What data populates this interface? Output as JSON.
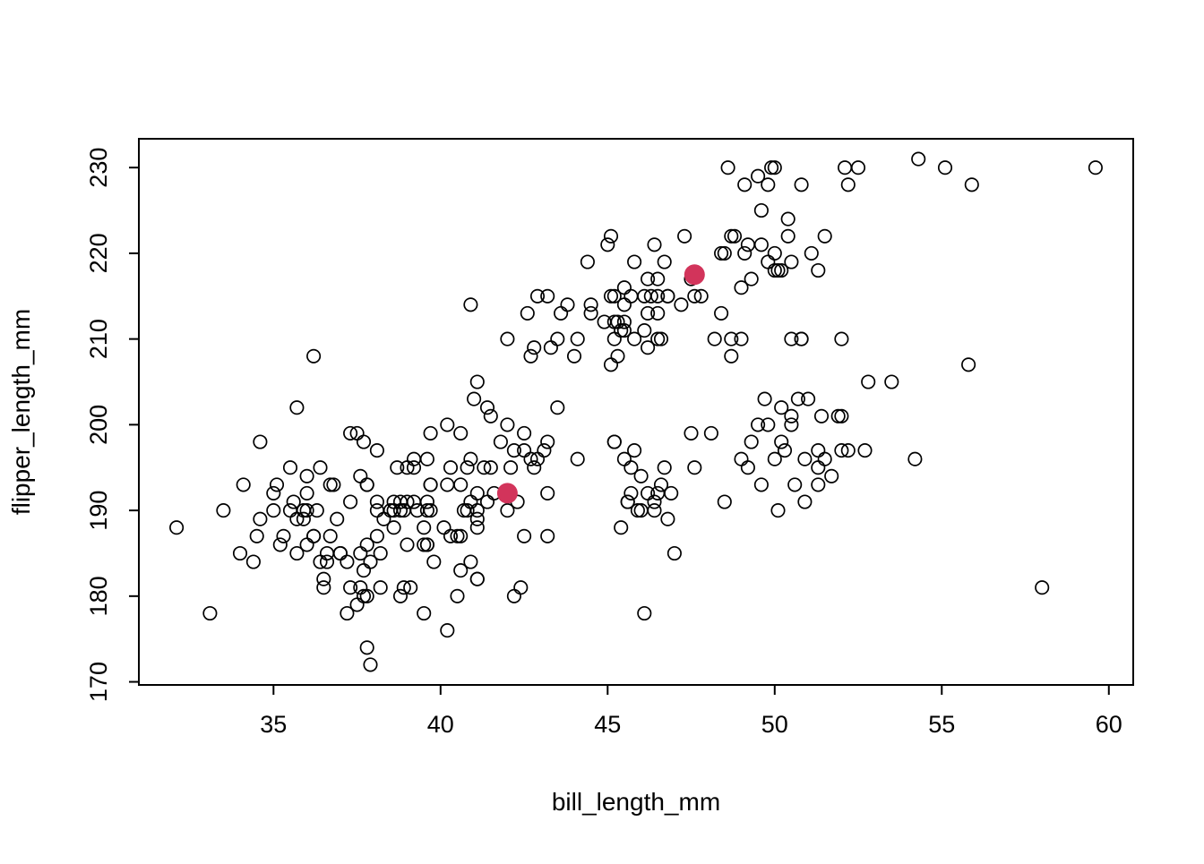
{
  "chart_data": {
    "type": "scatter",
    "title": "",
    "xlabel": "bill_length_mm",
    "ylabel": "flipper_length_mm",
    "xlim": [
      30.97,
      60.73
    ],
    "ylim": [
      169.64,
      233.36
    ],
    "x_ticks": [
      35,
      40,
      45,
      50,
      55,
      60
    ],
    "y_ticks": [
      170,
      180,
      190,
      200,
      210,
      220,
      230
    ],
    "grid": false,
    "legend": "none",
    "point_style": "open-circle",
    "point_color": "#000000",
    "center_color": "#d2345b",
    "points": [
      [
        39.1,
        181
      ],
      [
        39.5,
        186
      ],
      [
        40.3,
        195
      ],
      [
        36.7,
        193
      ],
      [
        39.3,
        190
      ],
      [
        38.9,
        181
      ],
      [
        39.2,
        195
      ],
      [
        34.1,
        193
      ],
      [
        42.0,
        190
      ],
      [
        37.8,
        186
      ],
      [
        37.8,
        180
      ],
      [
        41.1,
        182
      ],
      [
        38.6,
        191
      ],
      [
        34.6,
        198
      ],
      [
        36.6,
        185
      ],
      [
        38.7,
        195
      ],
      [
        42.5,
        197
      ],
      [
        34.4,
        184
      ],
      [
        46.0,
        194
      ],
      [
        37.8,
        174
      ],
      [
        37.7,
        180
      ],
      [
        35.9,
        189
      ],
      [
        38.2,
        185
      ],
      [
        38.8,
        180
      ],
      [
        35.3,
        187
      ],
      [
        40.6,
        183
      ],
      [
        40.5,
        187
      ],
      [
        37.9,
        172
      ],
      [
        40.5,
        180
      ],
      [
        39.5,
        178
      ],
      [
        37.2,
        178
      ],
      [
        39.5,
        188
      ],
      [
        40.9,
        184
      ],
      [
        36.4,
        195
      ],
      [
        39.2,
        196
      ],
      [
        38.8,
        190
      ],
      [
        42.2,
        180
      ],
      [
        37.6,
        181
      ],
      [
        39.8,
        184
      ],
      [
        36.5,
        182
      ],
      [
        40.8,
        195
      ],
      [
        36.0,
        186
      ],
      [
        44.1,
        196
      ],
      [
        37.0,
        185
      ],
      [
        39.6,
        190
      ],
      [
        41.1,
        182
      ],
      [
        37.5,
        179
      ],
      [
        36.0,
        190
      ],
      [
        42.3,
        191
      ],
      [
        39.6,
        186
      ],
      [
        40.1,
        188
      ],
      [
        35.0,
        190
      ],
      [
        42.0,
        200
      ],
      [
        34.5,
        187
      ],
      [
        41.4,
        191
      ],
      [
        39.0,
        186
      ],
      [
        40.6,
        193
      ],
      [
        36.5,
        181
      ],
      [
        37.6,
        194
      ],
      [
        35.7,
        185
      ],
      [
        41.3,
        195
      ],
      [
        37.6,
        185
      ],
      [
        41.1,
        192
      ],
      [
        36.4,
        184
      ],
      [
        41.6,
        192
      ],
      [
        35.5,
        195
      ],
      [
        41.1,
        188
      ],
      [
        35.9,
        190
      ],
      [
        41.8,
        198
      ],
      [
        33.5,
        190
      ],
      [
        39.7,
        190
      ],
      [
        39.6,
        196
      ],
      [
        45.8,
        197
      ],
      [
        35.5,
        190
      ],
      [
        42.8,
        195
      ],
      [
        40.9,
        191
      ],
      [
        37.2,
        184
      ],
      [
        36.2,
        187
      ],
      [
        42.1,
        195
      ],
      [
        34.6,
        189
      ],
      [
        42.9,
        196
      ],
      [
        36.7,
        187
      ],
      [
        35.1,
        193
      ],
      [
        37.3,
        191
      ],
      [
        36.3,
        190
      ],
      [
        36.9,
        189
      ],
      [
        38.3,
        189
      ],
      [
        38.9,
        190
      ],
      [
        35.7,
        202
      ],
      [
        41.1,
        205
      ],
      [
        34.0,
        185
      ],
      [
        39.6,
        186
      ],
      [
        36.2,
        208
      ],
      [
        40.8,
        190
      ],
      [
        38.1,
        190
      ],
      [
        40.3,
        187
      ],
      [
        33.1,
        178
      ],
      [
        43.2,
        192
      ],
      [
        35.0,
        192
      ],
      [
        41.0,
        203
      ],
      [
        37.7,
        183
      ],
      [
        37.8,
        193
      ],
      [
        37.9,
        184
      ],
      [
        39.7,
        199
      ],
      [
        38.6,
        190
      ],
      [
        38.2,
        181
      ],
      [
        38.1,
        197
      ],
      [
        43.2,
        198
      ],
      [
        38.1,
        191
      ],
      [
        45.6,
        191
      ],
      [
        39.7,
        193
      ],
      [
        42.2,
        197
      ],
      [
        39.6,
        191
      ],
      [
        42.7,
        196
      ],
      [
        38.6,
        188
      ],
      [
        37.3,
        199
      ],
      [
        35.7,
        189
      ],
      [
        41.1,
        189
      ],
      [
        36.2,
        187
      ],
      [
        37.7,
        198
      ],
      [
        40.2,
        176
      ],
      [
        41.4,
        202
      ],
      [
        35.2,
        186
      ],
      [
        40.6,
        199
      ],
      [
        38.8,
        191
      ],
      [
        41.5,
        195
      ],
      [
        39.0,
        191
      ],
      [
        44.1,
        210
      ],
      [
        38.5,
        190
      ],
      [
        43.1,
        197
      ],
      [
        36.8,
        193
      ],
      [
        37.5,
        199
      ],
      [
        38.1,
        187
      ],
      [
        41.1,
        190
      ],
      [
        35.6,
        191
      ],
      [
        40.2,
        200
      ],
      [
        37.0,
        185
      ],
      [
        39.7,
        193
      ],
      [
        40.2,
        193
      ],
      [
        40.6,
        187
      ],
      [
        32.1,
        188
      ],
      [
        40.7,
        190
      ],
      [
        37.3,
        181
      ],
      [
        39.0,
        195
      ],
      [
        39.2,
        191
      ],
      [
        36.6,
        184
      ],
      [
        36.0,
        192
      ],
      [
        37.8,
        193
      ],
      [
        36.0,
        194
      ],
      [
        41.5,
        201
      ],
      [
        46.1,
        211
      ],
      [
        50.0,
        230
      ],
      [
        48.7,
        210
      ],
      [
        50.0,
        218
      ],
      [
        47.6,
        215
      ],
      [
        46.5,
        210
      ],
      [
        45.4,
        211
      ],
      [
        46.7,
        219
      ],
      [
        43.3,
        209
      ],
      [
        46.8,
        215
      ],
      [
        40.9,
        214
      ],
      [
        49.0,
        216
      ],
      [
        45.5,
        214
      ],
      [
        48.4,
        213
      ],
      [
        45.8,
        210
      ],
      [
        49.3,
        217
      ],
      [
        42.0,
        210
      ],
      [
        49.2,
        221
      ],
      [
        46.2,
        209
      ],
      [
        48.7,
        222
      ],
      [
        50.2,
        218
      ],
      [
        45.1,
        215
      ],
      [
        46.5,
        213
      ],
      [
        46.3,
        215
      ],
      [
        42.9,
        215
      ],
      [
        46.1,
        215
      ],
      [
        44.5,
        213
      ],
      [
        47.8,
        215
      ],
      [
        48.2,
        210
      ],
      [
        50.0,
        220
      ],
      [
        47.3,
        222
      ],
      [
        42.8,
        209
      ],
      [
        45.1,
        207
      ],
      [
        59.6,
        230
      ],
      [
        49.1,
        220
      ],
      [
        48.4,
        220
      ],
      [
        42.6,
        213
      ],
      [
        44.4,
        219
      ],
      [
        44.0,
        208
      ],
      [
        48.7,
        208
      ],
      [
        42.7,
        208
      ],
      [
        49.6,
        221
      ],
      [
        45.3,
        208
      ],
      [
        49.6,
        225
      ],
      [
        50.5,
        210
      ],
      [
        43.6,
        213
      ],
      [
        45.5,
        211
      ],
      [
        50.5,
        219
      ],
      [
        44.9,
        212
      ],
      [
        45.2,
        215
      ],
      [
        46.6,
        210
      ],
      [
        48.5,
        220
      ],
      [
        45.1,
        222
      ],
      [
        50.1,
        218
      ],
      [
        46.5,
        217
      ],
      [
        45.0,
        221
      ],
      [
        43.8,
        214
      ],
      [
        45.5,
        216
      ],
      [
        43.2,
        215
      ],
      [
        50.4,
        222
      ],
      [
        45.3,
        212
      ],
      [
        46.2,
        213
      ],
      [
        45.7,
        215
      ],
      [
        54.3,
        231
      ],
      [
        45.8,
        219
      ],
      [
        49.8,
        228
      ],
      [
        46.5,
        215
      ],
      [
        55.1,
        230
      ],
      [
        44.5,
        214
      ],
      [
        48.8,
        222
      ],
      [
        47.2,
        214
      ],
      [
        46.8,
        215
      ],
      [
        50.4,
        224
      ],
      [
        45.2,
        212
      ],
      [
        49.9,
        230
      ],
      [
        52.1,
        230
      ],
      [
        55.9,
        228
      ],
      [
        49.1,
        228
      ],
      [
        46.4,
        221
      ],
      [
        48.6,
        230
      ],
      [
        52.5,
        230
      ],
      [
        49.5,
        229
      ],
      [
        51.1,
        220
      ],
      [
        45.2,
        210
      ],
      [
        50.8,
        228
      ],
      [
        51.3,
        218
      ],
      [
        47.5,
        217
      ],
      [
        52.2,
        228
      ],
      [
        45.5,
        212
      ],
      [
        49.8,
        219
      ],
      [
        43.5,
        210
      ],
      [
        51.5,
        222
      ],
      [
        46.2,
        217
      ],
      [
        46.5,
        192
      ],
      [
        50.0,
        196
      ],
      [
        51.3,
        193
      ],
      [
        45.4,
        188
      ],
      [
        52.7,
        197
      ],
      [
        45.2,
        198
      ],
      [
        46.1,
        178
      ],
      [
        51.3,
        197
      ],
      [
        46.0,
        190
      ],
      [
        51.3,
        195
      ],
      [
        46.6,
        193
      ],
      [
        51.7,
        194
      ],
      [
        47.0,
        185
      ],
      [
        52.0,
        201
      ],
      [
        45.9,
        190
      ],
      [
        50.5,
        201
      ],
      [
        50.3,
        197
      ],
      [
        58.0,
        181
      ],
      [
        46.4,
        190
      ],
      [
        49.2,
        195
      ],
      [
        42.4,
        181
      ],
      [
        48.5,
        191
      ],
      [
        43.2,
        187
      ],
      [
        50.6,
        193
      ],
      [
        46.7,
        195
      ],
      [
        52.0,
        197
      ],
      [
        50.5,
        200
      ],
      [
        49.5,
        200
      ],
      [
        46.4,
        191
      ],
      [
        52.8,
        205
      ],
      [
        40.9,
        196
      ],
      [
        54.2,
        196
      ],
      [
        42.5,
        199
      ],
      [
        51.0,
        203
      ],
      [
        49.7,
        203
      ],
      [
        47.5,
        199
      ],
      [
        47.6,
        195
      ],
      [
        52.0,
        210
      ],
      [
        46.9,
        192
      ],
      [
        53.5,
        205
      ],
      [
        49.0,
        210
      ],
      [
        46.2,
        192
      ],
      [
        50.9,
        196
      ],
      [
        45.5,
        196
      ],
      [
        50.9,
        191
      ],
      [
        50.8,
        210
      ],
      [
        50.1,
        190
      ],
      [
        49.0,
        196
      ],
      [
        51.5,
        196
      ],
      [
        49.8,
        200
      ],
      [
        48.1,
        199
      ],
      [
        51.4,
        201
      ],
      [
        45.7,
        195
      ],
      [
        50.7,
        203
      ],
      [
        42.5,
        187
      ],
      [
        52.2,
        197
      ],
      [
        45.2,
        198
      ],
      [
        49.3,
        198
      ],
      [
        50.2,
        202
      ],
      [
        45.6,
        191
      ],
      [
        51.9,
        201
      ],
      [
        46.8,
        189
      ],
      [
        45.7,
        192
      ],
      [
        55.8,
        207
      ],
      [
        43.5,
        202
      ],
      [
        49.6,
        193
      ],
      [
        50.8,
        210
      ],
      [
        50.2,
        198
      ]
    ],
    "centers": [
      [
        42.0,
        192.0
      ],
      [
        47.6,
        217.5
      ]
    ]
  }
}
